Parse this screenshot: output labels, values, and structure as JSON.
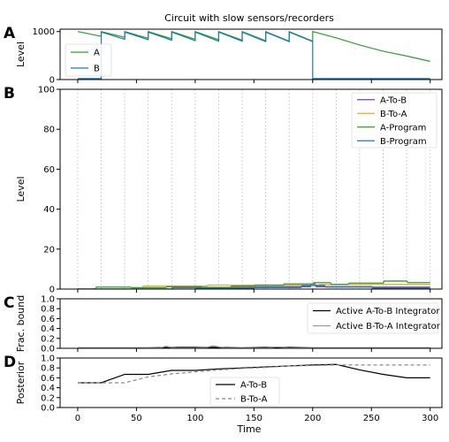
{
  "chart_data": {
    "title": "Circuit with slow sensors/recorders",
    "xlabel": "Time",
    "xlim": [
      -15,
      310
    ],
    "xticks": [
      0,
      50,
      100,
      150,
      200,
      250,
      300
    ],
    "guide_times": [
      0,
      20,
      40,
      60,
      80,
      100,
      120,
      140,
      160,
      180,
      200,
      220,
      240,
      260,
      280,
      300
    ],
    "panels": [
      {
        "letter": "A",
        "type": "line",
        "ylabel": "Level",
        "ylim": [
          0,
          1050
        ],
        "yticks": [
          0,
          1000
        ],
        "legend_position": "left",
        "colors": {
          "A": "#2ca02c",
          "B": "#1f77b4"
        },
        "series": [
          {
            "name": "A",
            "x": [
              0,
              20,
              20,
              40,
              40,
              60,
              60,
              80,
              80,
              100,
              100,
              120,
              120,
              140,
              140,
              160,
              160,
              180,
              180,
              200,
              200,
              220,
              240,
              260,
              280,
              300
            ],
            "y": [
              1000,
              900,
              1000,
              880,
              1000,
              860,
              1000,
              850,
              1000,
              840,
              1000,
              830,
              1000,
              820,
              1000,
              810,
              1000,
              800,
              1000,
              800,
              1000,
              870,
              720,
              590,
              490,
              380
            ]
          },
          {
            "name": "B",
            "x": [
              0,
              20,
              20,
              40,
              40,
              60,
              60,
              80,
              80,
              100,
              100,
              120,
              120,
              140,
              140,
              160,
              160,
              180,
              180,
              200,
              200,
              300
            ],
            "y": [
              20,
              20,
              990,
              840,
              990,
              830,
              990,
              820,
              990,
              810,
              990,
              800,
              990,
              800,
              990,
              790,
              990,
              790,
              990,
              790,
              20,
              20
            ]
          }
        ]
      },
      {
        "letter": "B",
        "type": "step",
        "ylabel": "Level",
        "ylim": [
          0,
          100
        ],
        "yticks": [
          0,
          20,
          40,
          60,
          80,
          100
        ],
        "legend_position": "top-right",
        "colors": {
          "A-To-B": "#7b3f9e",
          "B-To-A": "#f5a623",
          "A-Program": "#2ca02c",
          "B-Program": "#1f77b4"
        },
        "series": [
          {
            "name": "A-To-B",
            "x": [
              0,
              80,
              81,
              150,
              151,
              198,
              199,
              202,
              203,
              250,
              251,
              300
            ],
            "y": [
              0,
              0,
              0.8,
              0.8,
              1.2,
              1.2,
              2.6,
              2.6,
              1.2,
              1.2,
              0.5,
              0.5
            ]
          },
          {
            "name": "B-To-A",
            "x": [
              0,
              55,
              56,
              110,
              111,
              205,
              206,
              300
            ],
            "y": [
              0,
              0,
              1.5,
              1.5,
              2.0,
              2.0,
              2.3,
              2.3
            ]
          },
          {
            "name": "A-Program",
            "x": [
              0,
              15,
              16,
              45,
              46,
              75,
              76,
              105,
              106,
              130,
              131,
              150,
              151,
              175,
              176,
              200,
              201,
              215,
              216,
              230,
              231,
              260,
              261,
              280,
              281,
              300
            ],
            "y": [
              0,
              0,
              1.0,
              1.0,
              0.7,
              0.7,
              1.2,
              1.2,
              0.9,
              0.9,
              1.5,
              1.5,
              2.0,
              2.0,
              2.6,
              2.6,
              3.2,
              3.2,
              2.3,
              2.3,
              3.0,
              3.0,
              4.0,
              4.0,
              3.2,
              3.2
            ]
          },
          {
            "name": "B-Program",
            "x": [
              0,
              100,
              101,
              150,
              151,
              190,
              191,
              210,
              211,
              300
            ],
            "y": [
              0,
              0,
              0.5,
              0.5,
              0.8,
              0.8,
              1.8,
              1.8,
              1.0,
              1.0
            ]
          }
        ]
      },
      {
        "letter": "C",
        "type": "line",
        "ylabel": "Frac. bound",
        "ylim": [
          0,
          1.0
        ],
        "yticks": [
          0.0,
          0.2,
          0.4,
          0.6,
          0.8,
          1.0
        ],
        "ytick_labels": [
          "0.0",
          "0.2",
          "0.4",
          "0.6",
          "0.8",
          "1.0"
        ],
        "legend_position": "right",
        "colors": {
          "Active A-To-B Integrator": "#000000",
          "Active B-To-A Integrator": "#999999"
        },
        "series": [
          {
            "name": "Active A-To-B Integrator",
            "x": [
              0,
              20,
              40,
              60,
              80,
              100,
              120,
              140,
              160,
              180,
              200,
              220,
              240,
              260,
              280,
              300
            ],
            "y": [
              0.01,
              0.01,
              0.01,
              0.01,
              0.02,
              0.02,
              0.02,
              0.01,
              0.02,
              0.02,
              0.01,
              0.01,
              0.01,
              0.01,
              0.01,
              0.01
            ]
          },
          {
            "name": "Active B-To-A Integrator",
            "x": [
              0,
              20,
              40,
              60,
              70,
              75,
              80,
              85,
              100,
              110,
              115,
              120,
              125,
              140,
              160,
              170,
              180,
              200,
              220,
              240,
              260,
              280,
              300
            ],
            "y": [
              0.01,
              0.01,
              0.01,
              0.01,
              0.01,
              0.04,
              0.02,
              0.01,
              0.01,
              0.02,
              0.05,
              0.03,
              0.01,
              0.01,
              0.01,
              0.03,
              0.01,
              0.01,
              0.01,
              0.01,
              0.01,
              0.01,
              0.01
            ]
          }
        ]
      },
      {
        "letter": "D",
        "type": "line",
        "ylabel": "Posterior",
        "ylim": [
          0,
          1.0
        ],
        "yticks": [
          0.0,
          0.2,
          0.4,
          0.6,
          0.8,
          1.0
        ],
        "ytick_labels": [
          "0.0",
          "0.2",
          "0.4",
          "0.6",
          "0.8",
          "1.0"
        ],
        "legend_position": "center",
        "colors": {
          "A-To-B": "#000000",
          "B-To-A": "#888888"
        },
        "series": [
          {
            "name": "A-To-B",
            "x": [
              0,
              20,
              40,
              60,
              80,
              100,
              120,
              140,
              160,
              180,
              200,
              220,
              240,
              260,
              280,
              300
            ],
            "y": [
              0.5,
              0.5,
              0.67,
              0.67,
              0.75,
              0.75,
              0.78,
              0.8,
              0.82,
              0.84,
              0.86,
              0.87,
              0.76,
              0.67,
              0.6,
              0.6
            ]
          },
          {
            "name": "B-To-A",
            "x": [
              0,
              20,
              40,
              60,
              80,
              100,
              120,
              140,
              160,
              180,
              200,
              220,
              240,
              260,
              280,
              300
            ],
            "y": [
              0.5,
              0.5,
              0.5,
              0.62,
              0.68,
              0.72,
              0.76,
              0.79,
              0.81,
              0.84,
              0.85,
              0.86,
              0.86,
              0.86,
              0.86,
              0.86
            ]
          }
        ]
      }
    ]
  }
}
